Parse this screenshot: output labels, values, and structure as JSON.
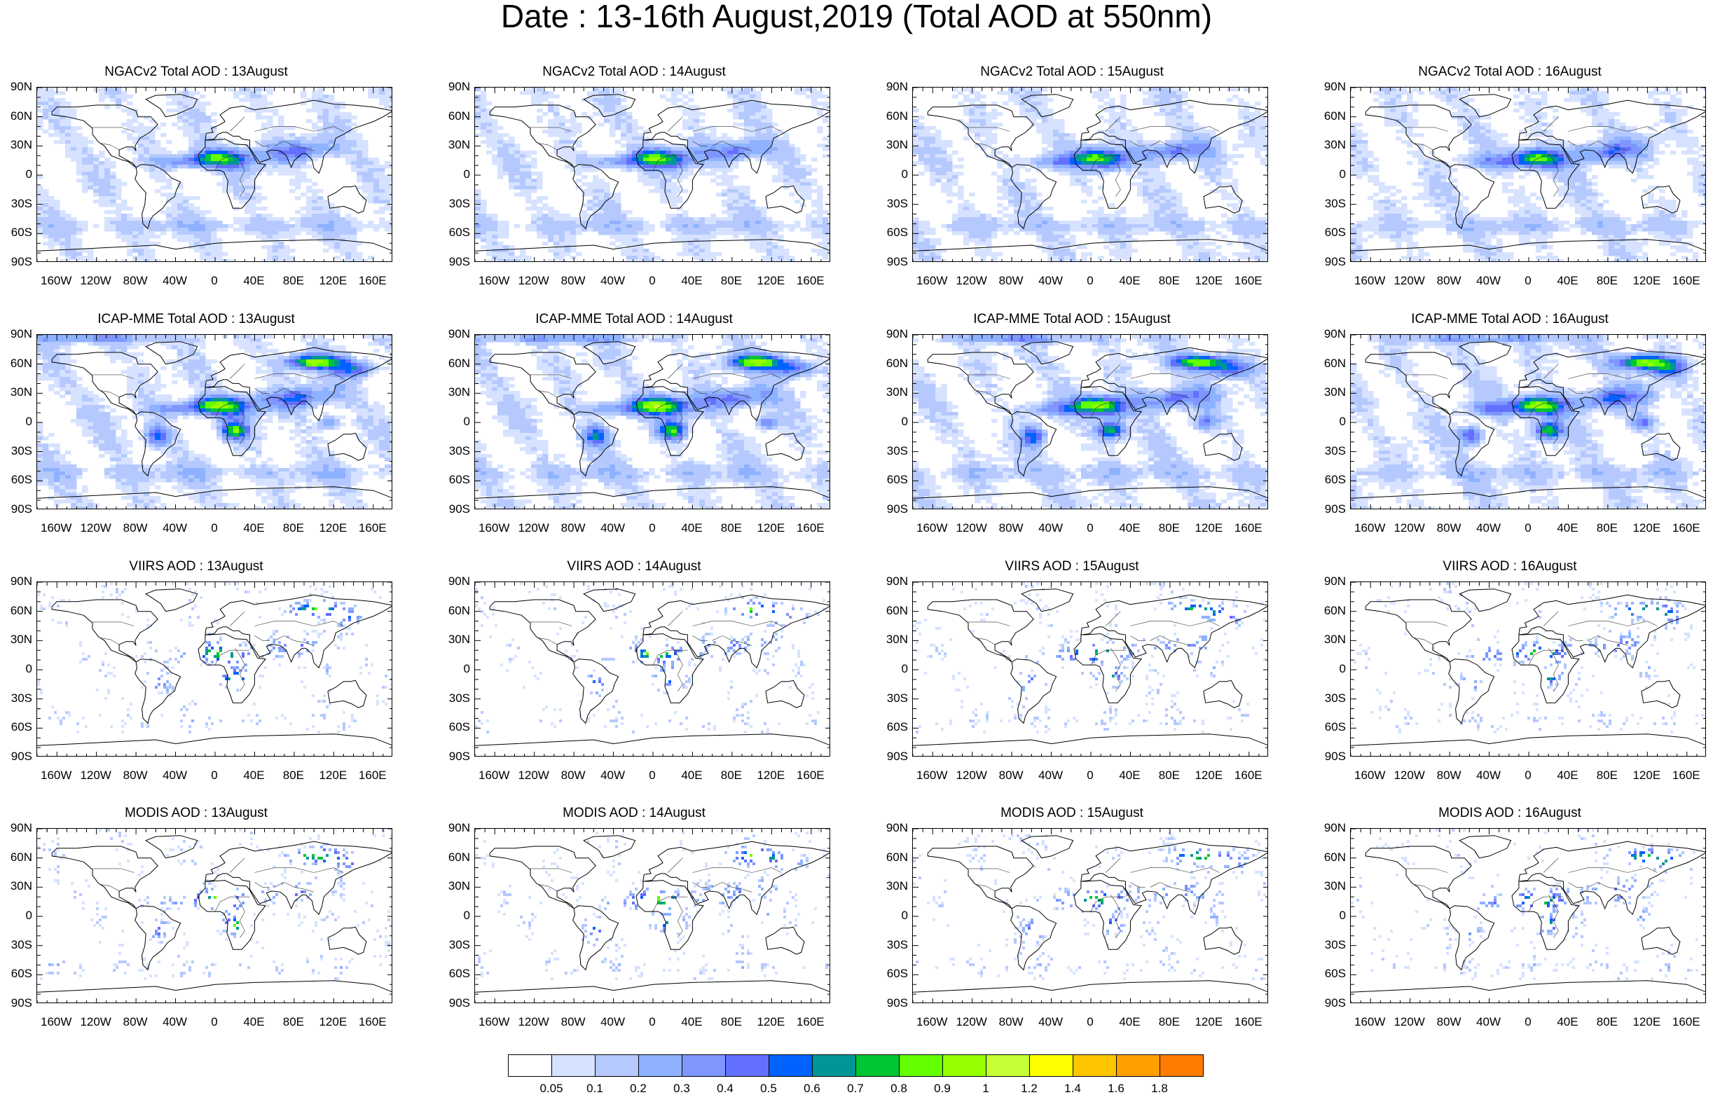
{
  "title": "Date : 13-16th August,2019 (Total AOD at 550nm)",
  "panels": [
    {
      "title": "NGACv2 Total AOD : 13August",
      "model": "ngac",
      "day": 0
    },
    {
      "title": "NGACv2 Total AOD : 14August",
      "model": "ngac",
      "day": 1
    },
    {
      "title": "NGACv2 Total AOD : 15August",
      "model": "ngac",
      "day": 2
    },
    {
      "title": "NGACv2 Total AOD : 16August",
      "model": "ngac",
      "day": 3
    },
    {
      "title": "ICAP-MME Total AOD : 13August",
      "model": "icap",
      "day": 0
    },
    {
      "title": "ICAP-MME Total AOD : 14August",
      "model": "icap",
      "day": 1
    },
    {
      "title": "ICAP-MME Total AOD : 15August",
      "model": "icap",
      "day": 2
    },
    {
      "title": "ICAP-MME Total AOD : 16August",
      "model": "icap",
      "day": 3
    },
    {
      "title": "VIIRS AOD : 13August",
      "model": "viirs",
      "day": 0
    },
    {
      "title": "VIIRS AOD : 14August",
      "model": "viirs",
      "day": 1
    },
    {
      "title": "VIIRS AOD : 15August",
      "model": "viirs",
      "day": 2
    },
    {
      "title": "VIIRS AOD : 16August",
      "model": "viirs",
      "day": 3
    },
    {
      "title": "MODIS AOD : 13August",
      "model": "modis",
      "day": 0
    },
    {
      "title": "MODIS AOD : 14August",
      "model": "modis",
      "day": 1
    },
    {
      "title": "MODIS AOD : 15August",
      "model": "modis",
      "day": 2
    },
    {
      "title": "MODIS AOD : 16August",
      "model": "modis",
      "day": 3
    }
  ],
  "lat_labels": [
    "90N",
    "60N",
    "30N",
    "0",
    "30S",
    "60S",
    "90S"
  ],
  "lon_labels": [
    "160W",
    "120W",
    "80W",
    "40W",
    "0",
    "40E",
    "80E",
    "120E",
    "160E"
  ],
  "colorbar": {
    "labels": [
      "0.05",
      "0.1",
      "0.2",
      "0.3",
      "0.4",
      "0.5",
      "0.6",
      "0.7",
      "0.8",
      "0.9",
      "1",
      "1.2",
      "1.4",
      "1.6",
      "1.8"
    ],
    "colors": [
      "#ffffff",
      "#d6e2ff",
      "#b5c9ff",
      "#8eb2ff",
      "#7f96ff",
      "#6370ff",
      "#0063ff",
      "#009696",
      "#00c633",
      "#63ff00",
      "#96ff00",
      "#c6ff33",
      "#ffff00",
      "#ffc600",
      "#ffa000",
      "#ff7c00",
      "#ff1900"
    ]
  }
}
